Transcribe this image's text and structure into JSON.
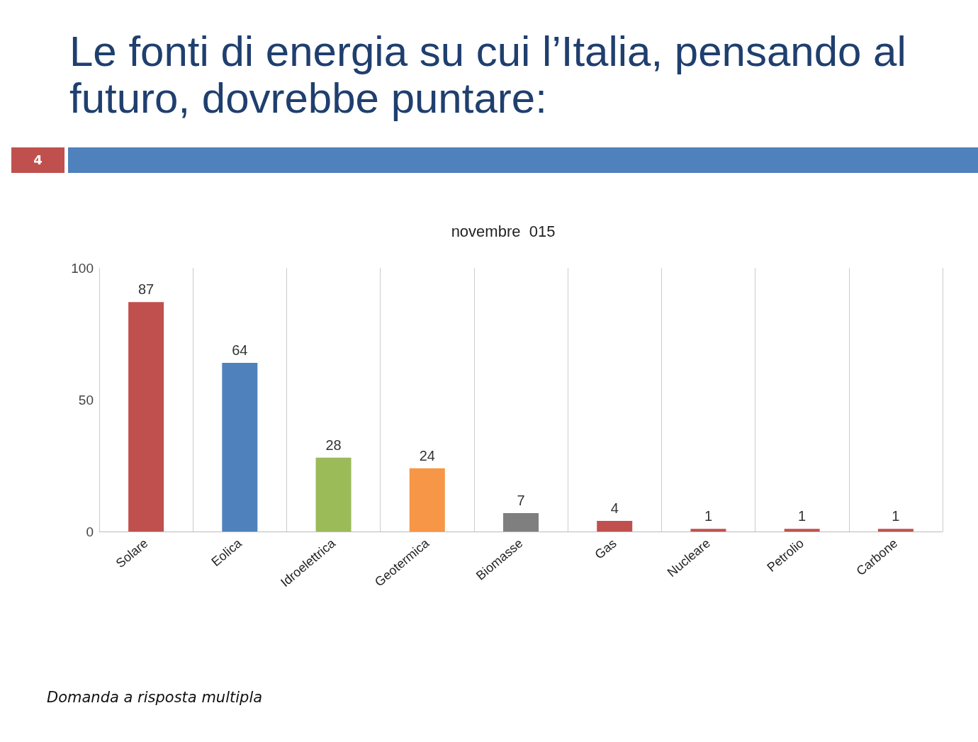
{
  "chart_data": {
    "type": "bar",
    "title": "Le fonti di energia su cui l’Italia, pensando al futuro, dovrebbe puntare:",
    "subtitle": "novembre  015",
    "categories": [
      "Solare",
      "Eolica",
      "Idroelettrica",
      "Geotermica",
      "Biomasse",
      "Gas",
      "Nucleare",
      "Petrolio",
      "Carbone"
    ],
    "values": [
      87,
      64,
      28,
      24,
      7,
      4,
      1,
      1,
      1
    ],
    "colors": [
      "#c0504d",
      "#4f81bd",
      "#9bbb59",
      "#f79646",
      "#7f7f7f",
      "#c0504d",
      "#c0504d",
      "#c0504d",
      "#c0504d"
    ],
    "ylim": [
      0,
      100
    ],
    "yticks": [
      0,
      50,
      100
    ],
    "grid": "x",
    "data_labels": true,
    "annotations": [
      "4",
      "Domanda a risposta multipla"
    ]
  }
}
